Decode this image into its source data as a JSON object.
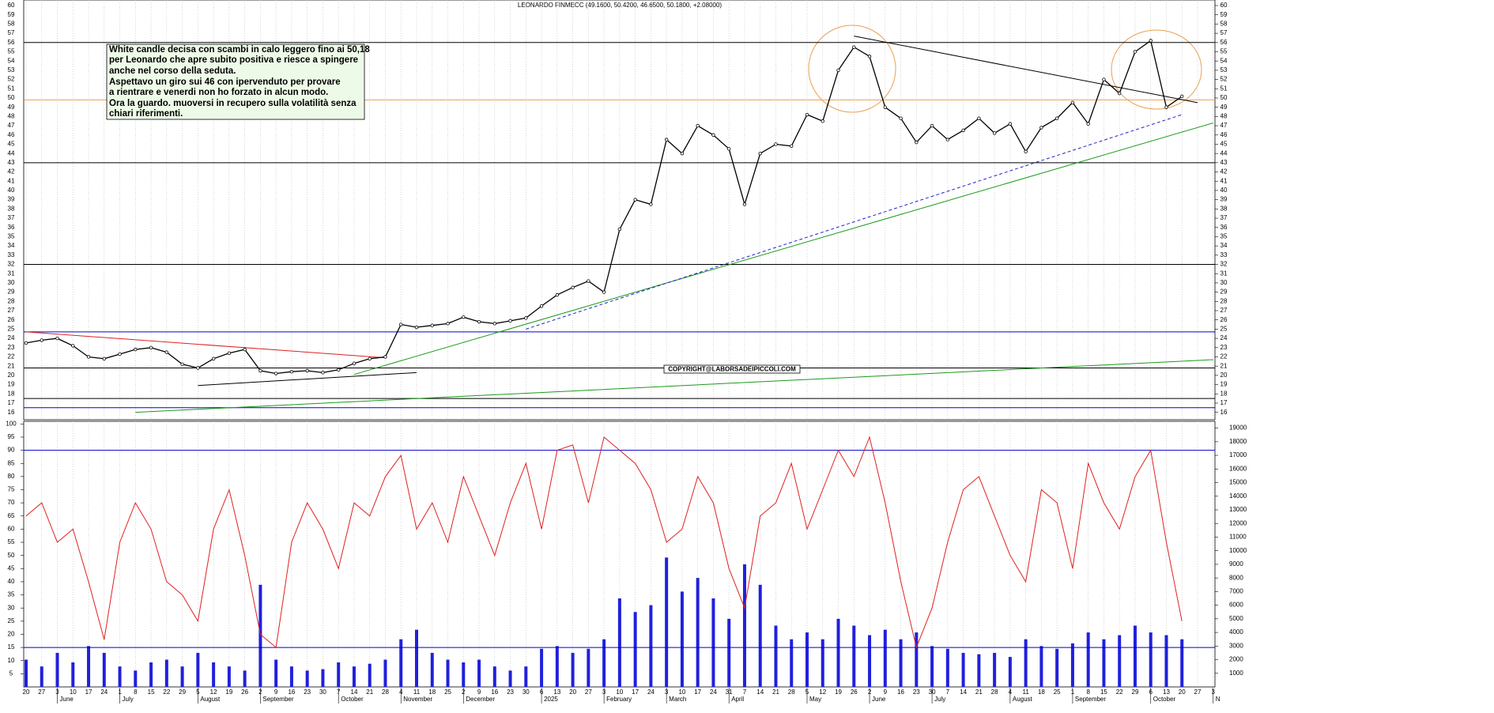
{
  "chart_data": {
    "type": "stock",
    "title": "LEONARDO FINMECC (49.1600, 50.4200, 46.6500, 50.1800, +2.08000)",
    "annotation": [
      "White candle decisa con scambi in calo leggero fino ai 50,18",
      "per Leonardo che apre subito positiva e riesce a spingere",
      "anche nel corso della seduta.",
      "Aspettavo un giro sui 46 con ipervenduto per provare",
      "a rientrare e venerdi non ho forzato in alcun modo.",
      "Ora la guardo. muoversi in recupero sulla volatilità senza",
      "chiari riferimenti."
    ],
    "copyright": "COPYRIGHT@LABORSADEIPICCOLI.COM",
    "categories": [
      "20",
      "27",
      "3",
      "10",
      "17",
      "24",
      "1",
      "8",
      "15",
      "22",
      "29",
      "5",
      "12",
      "19",
      "26",
      "2",
      "9",
      "16",
      "23",
      "30",
      "7",
      "14",
      "21",
      "28",
      "4",
      "11",
      "18",
      "25",
      "2",
      "9",
      "16",
      "23",
      "30",
      "6",
      "13",
      "20",
      "27",
      "3",
      "10",
      "17",
      "24",
      "3",
      "10",
      "17",
      "24",
      "31",
      "7",
      "14",
      "21",
      "28",
      "5",
      "12",
      "19",
      "26",
      "2",
      "9",
      "16",
      "23",
      "30",
      "7",
      "14",
      "21",
      "28",
      "4",
      "11",
      "18",
      "25",
      "1",
      "8",
      "15",
      "22",
      "29",
      "6",
      "13",
      "20",
      "27",
      "3"
    ],
    "month_ticks": [
      {
        "value": 2,
        "label": "June"
      },
      {
        "value": 6,
        "label": "July"
      },
      {
        "value": 11,
        "label": "August"
      },
      {
        "value": 15,
        "label": "September"
      },
      {
        "value": 20,
        "label": "October"
      },
      {
        "value": 24,
        "label": "November"
      },
      {
        "value": 28,
        "label": "December"
      },
      {
        "value": 33,
        "label": "2025"
      },
      {
        "value": 37,
        "label": "February"
      },
      {
        "value": 41,
        "label": "March"
      },
      {
        "value": 45,
        "label": "April"
      },
      {
        "value": 50,
        "label": "May"
      },
      {
        "value": 54,
        "label": "June"
      },
      {
        "value": 58,
        "label": "July"
      },
      {
        "value": 63,
        "label": "August"
      },
      {
        "value": 67,
        "label": "September"
      },
      {
        "value": 72,
        "label": "October"
      },
      {
        "value": 76,
        "label": "N"
      }
    ],
    "price": {
      "color": "#000000",
      "values": [
        23.5,
        23.8,
        24.0,
        23.2,
        22.0,
        21.8,
        22.3,
        22.8,
        23.0,
        22.5,
        21.2,
        20.8,
        21.8,
        22.4,
        22.8,
        20.5,
        20.2,
        20.4,
        20.5,
        20.3,
        20.6,
        21.3,
        21.8,
        22.0,
        25.5,
        25.2,
        25.4,
        25.6,
        26.3,
        25.8,
        25.6,
        25.9,
        26.2,
        27.5,
        28.7,
        29.5,
        30.2,
        29.0,
        35.8,
        39.0,
        38.5,
        45.5,
        44.0,
        47.0,
        46.0,
        44.5,
        38.5,
        44.0,
        45.0,
        44.8,
        48.2,
        47.5,
        53.0,
        55.5,
        54.5,
        49.0,
        47.8,
        45.2,
        47.0,
        45.5,
        46.5,
        47.8,
        46.2,
        47.2,
        44.2,
        46.8,
        47.8,
        49.5,
        47.2,
        52.0,
        50.5,
        55.0,
        56.2,
        49.0,
        50.18,
        null,
        null
      ],
      "ylim": [
        15.2,
        60.6
      ],
      "yticks": [
        16,
        17,
        18,
        19,
        20,
        21,
        22,
        23,
        24,
        25,
        26,
        27,
        28,
        29,
        30,
        31,
        32,
        33,
        34,
        35,
        36,
        37,
        38,
        39,
        40,
        41,
        42,
        43,
        44,
        45,
        46,
        47,
        48,
        49,
        50,
        51,
        52,
        53,
        54,
        55,
        56,
        57,
        58,
        59,
        60
      ],
      "hlines": [
        {
          "value": 56,
          "color": "#000000"
        },
        {
          "value": 49.8,
          "color": "#e8a050"
        },
        {
          "value": 43,
          "color": "#000000"
        },
        {
          "value": 32,
          "color": "#000000"
        },
        {
          "value": 24.7,
          "color": "#0000cc"
        },
        {
          "value": 20.8,
          "color": "#000000"
        },
        {
          "value": 17.5,
          "color": "#000000"
        },
        {
          "value": 16.5,
          "color": "#0000cc"
        }
      ],
      "trendlines": [
        {
          "x": [
            21,
            76
          ],
          "y": [
            20.1,
            47.3
          ],
          "color": "#1a9a1a"
        },
        {
          "x": [
            7,
            76
          ],
          "y": [
            16.0,
            21.7
          ],
          "color": "#1a9a1a"
        },
        {
          "x": [
            32,
            74
          ],
          "y": [
            25.0,
            48.2
          ],
          "color": "#2222cc"
        },
        {
          "x": [
            0,
            23
          ],
          "y": [
            24.7,
            21.9
          ],
          "color": "#dd2222"
        },
        {
          "x": [
            11,
            25
          ],
          "y": [
            18.9,
            20.3
          ],
          "color": "#000000"
        },
        {
          "x": [
            53,
            75
          ],
          "y": [
            56.7,
            49.5
          ],
          "color": "#000000"
        }
      ]
    },
    "oscillator": {
      "color": "#e02020",
      "values": [
        65,
        70,
        55,
        60,
        40,
        18,
        55,
        70,
        60,
        40,
        35,
        25,
        60,
        75,
        50,
        20,
        15,
        55,
        70,
        60,
        45,
        70,
        65,
        80,
        88,
        60,
        70,
        55,
        80,
        65,
        50,
        70,
        85,
        60,
        90,
        92,
        70,
        95,
        90,
        85,
        75,
        55,
        60,
        80,
        70,
        45,
        30,
        65,
        70,
        85,
        60,
        75,
        90,
        80,
        95,
        70,
        40,
        15,
        30,
        55,
        75,
        80,
        65,
        50,
        40,
        75,
        70,
        45,
        85,
        70,
        60,
        80,
        90,
        55,
        25,
        null,
        null
      ],
      "ylim": [
        0,
        101
      ],
      "yticks": [
        5,
        10,
        15,
        20,
        25,
        30,
        35,
        40,
        45,
        50,
        55,
        60,
        65,
        70,
        75,
        80,
        85,
        90,
        95,
        100
      ],
      "hlines": [
        90,
        15
      ],
      "hline_color": "#0000cc"
    },
    "volume": {
      "color": "#2020dd",
      "values": [
        2000,
        1500,
        2500,
        1800,
        3000,
        2500,
        1500,
        1200,
        1800,
        2000,
        1500,
        2500,
        1800,
        1500,
        1200,
        7500,
        2000,
        1500,
        1200,
        1300,
        1800,
        1500,
        1700,
        2000,
        3500,
        4200,
        2500,
        2000,
        1800,
        2000,
        1500,
        1200,
        1500,
        2800,
        3000,
        2500,
        2800,
        3500,
        6500,
        5500,
        6000,
        9500,
        7000,
        8000,
        6500,
        5000,
        9000,
        7500,
        4500,
        3500,
        4000,
        3500,
        5000,
        4500,
        3800,
        4200,
        3500,
        4000,
        3000,
        2800,
        2500,
        2400,
        2500,
        2200,
        3500,
        3000,
        2800,
        3200,
        4000,
        3500,
        3800,
        4500,
        4000,
        3800,
        3500,
        null,
        null
      ],
      "ylim": [
        0,
        19500
      ],
      "yticks": [
        1000,
        2000,
        3000,
        4000,
        5000,
        6000,
        7000,
        8000,
        9000,
        10000,
        11000,
        12000,
        13000,
        14000,
        15000,
        16000,
        17000,
        18000,
        19000
      ]
    },
    "grid": true
  }
}
